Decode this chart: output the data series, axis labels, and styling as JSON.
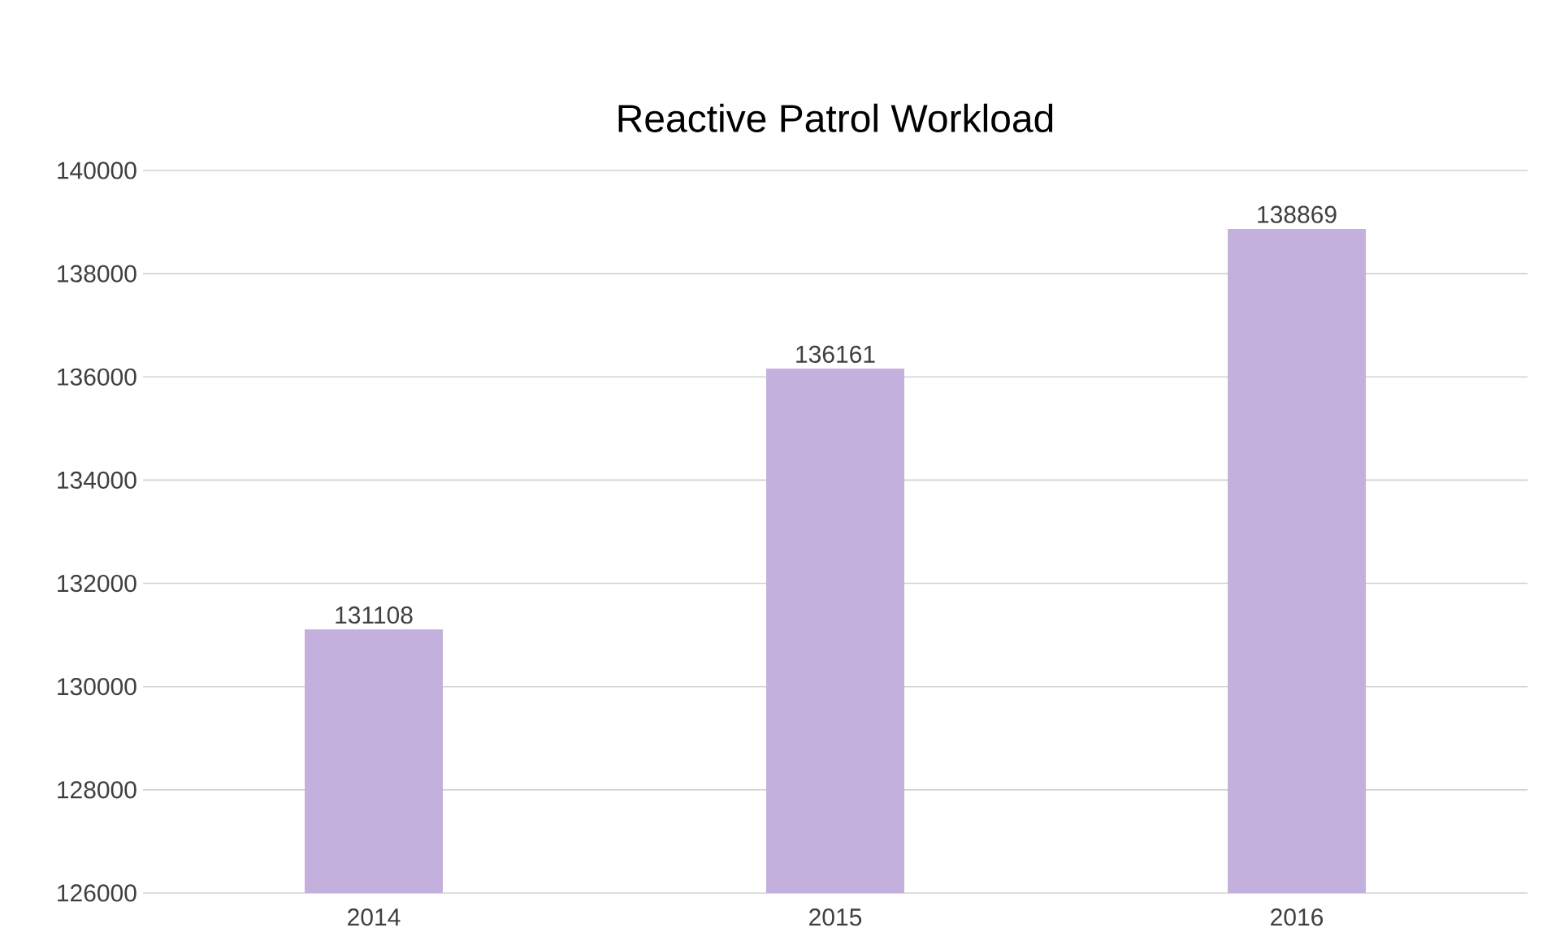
{
  "chart_data": {
    "type": "bar",
    "title": "Reactive Patrol Workload",
    "categories": [
      "2014",
      "2015",
      "2016"
    ],
    "values": [
      131108,
      136161,
      138869
    ],
    "color": "#c4b0dc",
    "ylim": [
      126000,
      140000
    ],
    "yticks": [
      126000,
      128000,
      130000,
      132000,
      134000,
      136000,
      138000,
      140000
    ],
    "grid": "y",
    "data_labels": true
  }
}
